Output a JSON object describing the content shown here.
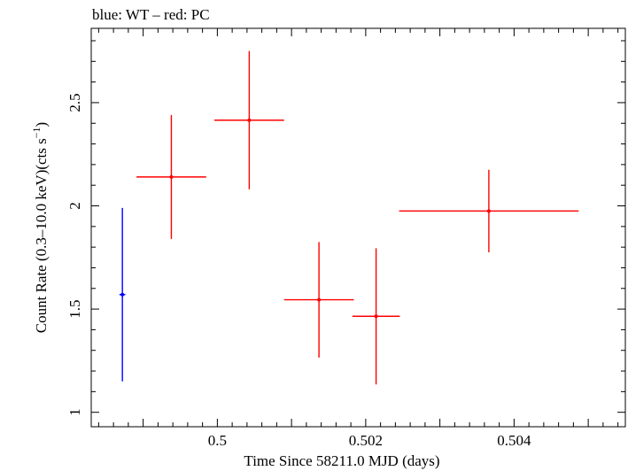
{
  "chart_data": {
    "type": "scatter",
    "title": "blue: WT – red: PC",
    "xlabel": "Time Since 58211.0 MJD (days)",
    "ylabel": "Count Rate (0.3–10.0 keV)(cts s⁻¹)",
    "xlim": [
      0.4983,
      0.5055
    ],
    "ylim": [
      0.93,
      2.86
    ],
    "xticks": [
      {
        "value": 0.5,
        "label": "0.5"
      },
      {
        "value": 0.502,
        "label": "0.502"
      },
      {
        "value": 0.504,
        "label": "0.504"
      }
    ],
    "yticks": [
      {
        "value": 1,
        "label": "1"
      },
      {
        "value": 1.5,
        "label": "1.5"
      },
      {
        "value": 2,
        "label": "2"
      },
      {
        "value": 2.5,
        "label": "2.5"
      }
    ],
    "grid": false,
    "series": [
      {
        "name": "WT",
        "color": "#0000ff",
        "points": [
          {
            "x": 0.49872,
            "y": 1.57,
            "xerr": 4e-05,
            "yerr_low": 0.42,
            "yerr_high": 0.42
          }
        ]
      },
      {
        "name": "PC",
        "color": "#ff0000",
        "points": [
          {
            "x": 0.49938,
            "y": 2.14,
            "xerr": 0.00047,
            "yerr_low": 0.3,
            "yerr_high": 0.3
          },
          {
            "x": 0.50043,
            "y": 2.415,
            "xerr": 0.00047,
            "yerr_low": 0.335,
            "yerr_high": 0.335
          },
          {
            "x": 0.50137,
            "y": 1.545,
            "xerr": 0.00047,
            "yerr_low": 0.28,
            "yerr_high": 0.28
          },
          {
            "x": 0.50214,
            "y": 1.465,
            "xerr": 0.00032,
            "yerr_low": 0.33,
            "yerr_high": 0.33
          },
          {
            "x": 0.50366,
            "y": 1.975,
            "xerr": 0.00121,
            "yerr_low": 0.2,
            "yerr_high": 0.2
          }
        ]
      }
    ]
  }
}
